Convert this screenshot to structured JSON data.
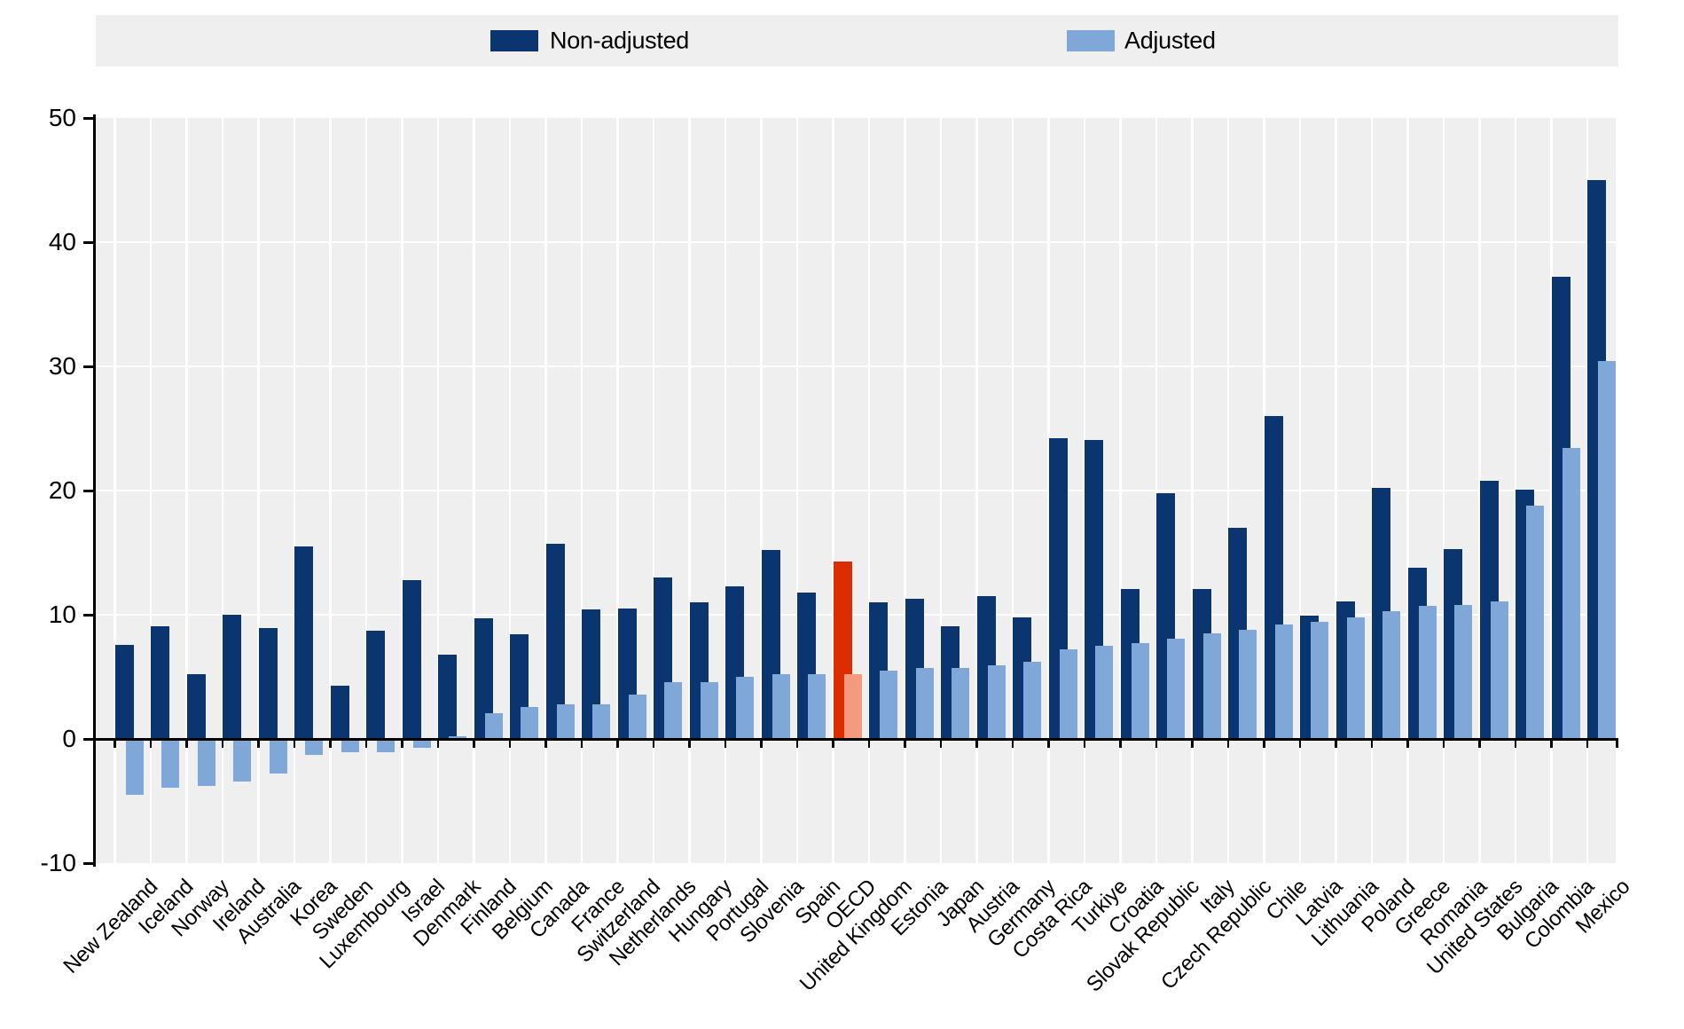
{
  "legend": {
    "non_adjusted": "Non-adjusted",
    "adjusted": "Adjusted"
  },
  "colors": {
    "non_adjusted": "#0a356f",
    "adjusted": "#7fa8d9",
    "highlight_non_adjusted": "#dc2c02",
    "highlight_adjusted": "#f59a7e",
    "plot_background": "#efefef",
    "gridline": "#ffffff",
    "axis": "#000000"
  },
  "chart_data": {
    "type": "bar",
    "title": "",
    "xlabel": "",
    "ylabel": "",
    "ylim": [
      -10,
      50
    ],
    "yticks": [
      50,
      40,
      30,
      20,
      10,
      0,
      -10
    ],
    "grid": "horizontal white lines on gray background, white column separators",
    "legend_position": "top",
    "highlight_category": "OECD",
    "categories": [
      "New Zealand",
      "Iceland",
      "Norway",
      "Ireland",
      "Australia",
      "Korea",
      "Sweden",
      "Luxembourg",
      "Israel",
      "Denmark",
      "Finland",
      "Belgium",
      "Canada",
      "France",
      "Switzerland",
      "Netherlands",
      "Hungary",
      "Portugal",
      "Slovenia",
      "Spain",
      "OECD",
      "United Kingdom",
      "Estonia",
      "Japan",
      "Austria",
      "Germany",
      "Costa Rica",
      "Turkiye",
      "Croatia",
      "Slovak Republic",
      "Italy",
      "Czech Republic",
      "Chile",
      "Latvia",
      "Lithuania",
      "Poland",
      "Greece",
      "Romania",
      "United States",
      "Bulgaria",
      "Colombia",
      "Mexico"
    ],
    "series": [
      {
        "name": "Non-adjusted",
        "values": [
          7.6,
          9.1,
          5.2,
          10.0,
          8.9,
          15.5,
          4.3,
          8.7,
          12.8,
          6.8,
          9.7,
          8.4,
          15.7,
          10.4,
          10.5,
          13.0,
          11.0,
          12.3,
          15.2,
          11.8,
          14.3,
          11.0,
          11.3,
          9.1,
          11.5,
          9.8,
          24.2,
          24.1,
          12.1,
          19.8,
          12.1,
          17.0,
          26.0,
          9.9,
          11.1,
          20.2,
          13.8,
          15.3,
          20.8,
          20.1,
          37.2,
          45.0
        ]
      },
      {
        "name": "Adjusted",
        "values": [
          -4.5,
          -3.9,
          -3.8,
          -3.4,
          -2.8,
          -1.3,
          -1.1,
          -1.1,
          -0.7,
          0.2,
          2.1,
          2.6,
          2.8,
          2.8,
          3.6,
          4.6,
          4.6,
          5.0,
          5.2,
          5.2,
          5.2,
          5.5,
          5.7,
          5.7,
          5.9,
          6.2,
          7.2,
          7.5,
          7.7,
          8.1,
          8.5,
          8.8,
          9.2,
          9.4,
          9.8,
          10.3,
          10.7,
          10.8,
          11.1,
          18.8,
          23.4,
          30.4
        ]
      }
    ]
  }
}
